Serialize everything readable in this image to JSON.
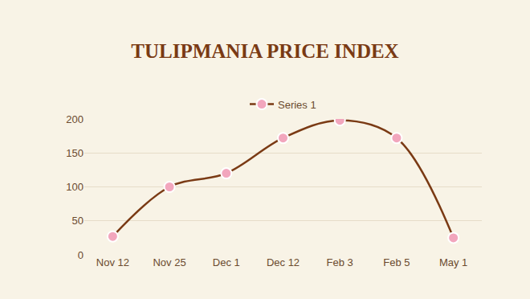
{
  "chart_data": {
    "type": "line",
    "title": "TULIPMANIA PRICE INDEX",
    "categories": [
      "Nov 12",
      "Nov 25",
      "Dec 1",
      "Dec 12",
      "Feb 3",
      "Feb 5",
      "May 1"
    ],
    "series": [
      {
        "name": "Series 1",
        "color": "#7a3a14",
        "values": [
          27,
          100,
          120,
          172,
          198,
          172,
          25
        ]
      }
    ],
    "ylim": [
      0,
      200
    ],
    "yticks": [
      0,
      50,
      100,
      150,
      200
    ],
    "grid": true,
    "legend": "top",
    "marker": "circle",
    "line_style": "smooth"
  }
}
